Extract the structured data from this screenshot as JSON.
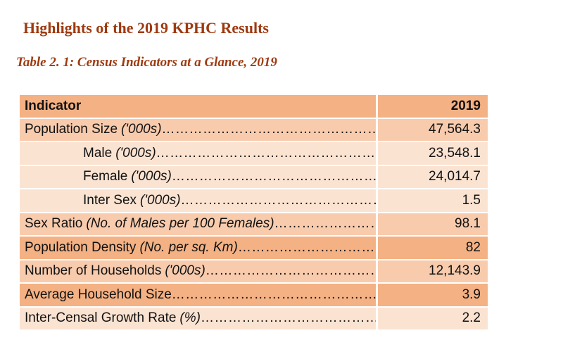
{
  "page": {
    "title": "Highlights of the 2019 KPHC Results",
    "caption": "Table 2. 1: Census Indicators at a Glance, 2019"
  },
  "colors": {
    "heading_text": "#9E3A10",
    "body_text": "#121212",
    "band_dark": "#F4B183",
    "band_medium": "#F8CBAD",
    "band_light": "#FBE3D2",
    "page_background": "#FFFFFF"
  },
  "table": {
    "header": {
      "indicator": "Indicator",
      "year": "2019"
    },
    "leader_dots": "………………………………………………………………………………",
    "rows": [
      {
        "label": "Population Size",
        "qualifier": "('000s)",
        "value": "47,564.3",
        "indent": false,
        "band": "medium"
      },
      {
        "label": "Male",
        "qualifier": "('000s)",
        "value": "23,548.1",
        "indent": true,
        "band": "light"
      },
      {
        "label": "Female",
        "qualifier": "('000s)",
        "value": "24,014.7",
        "indent": true,
        "band": "light"
      },
      {
        "label": "Inter Sex",
        "qualifier": "('000s)",
        "value": "1.5",
        "indent": true,
        "band": "light"
      },
      {
        "label": "Sex Ratio",
        "qualifier": "(No. of Males per 100 Females)",
        "value": "98.1",
        "indent": false,
        "band": "medium"
      },
      {
        "label": "Population Density",
        "qualifier": "(No. per sq. Km)",
        "value": "82",
        "indent": false,
        "band": "dark"
      },
      {
        "label": "Number of Households",
        "qualifier": "('000s)",
        "value": "12,143.9",
        "indent": false,
        "band": "medium"
      },
      {
        "label": "Average Household Size",
        "qualifier": "",
        "value": "3.9",
        "indent": false,
        "band": "dark"
      },
      {
        "label": "Inter-Censal Growth Rate",
        "qualifier": "(%)",
        "value": "2.2",
        "indent": false,
        "band": "light"
      }
    ]
  },
  "chart_data": {
    "type": "table",
    "title": "Table 2. 1: Census Indicators at a Glance, 2019",
    "columns": [
      "Indicator",
      "2019"
    ],
    "rows": [
      [
        "Population Size ('000s)",
        47564.3
      ],
      [
        "Male ('000s)",
        23548.1
      ],
      [
        "Female ('000s)",
        24014.7
      ],
      [
        "Inter Sex ('000s)",
        1.5
      ],
      [
        "Sex Ratio (No. of Males per 100 Females)",
        98.1
      ],
      [
        "Population Density (No. per sq. Km)",
        82
      ],
      [
        "Number of Households ('000s)",
        12143.9
      ],
      [
        "Average Household Size",
        3.9
      ],
      [
        "Inter-Censal Growth Rate (%)",
        2.2
      ]
    ]
  }
}
